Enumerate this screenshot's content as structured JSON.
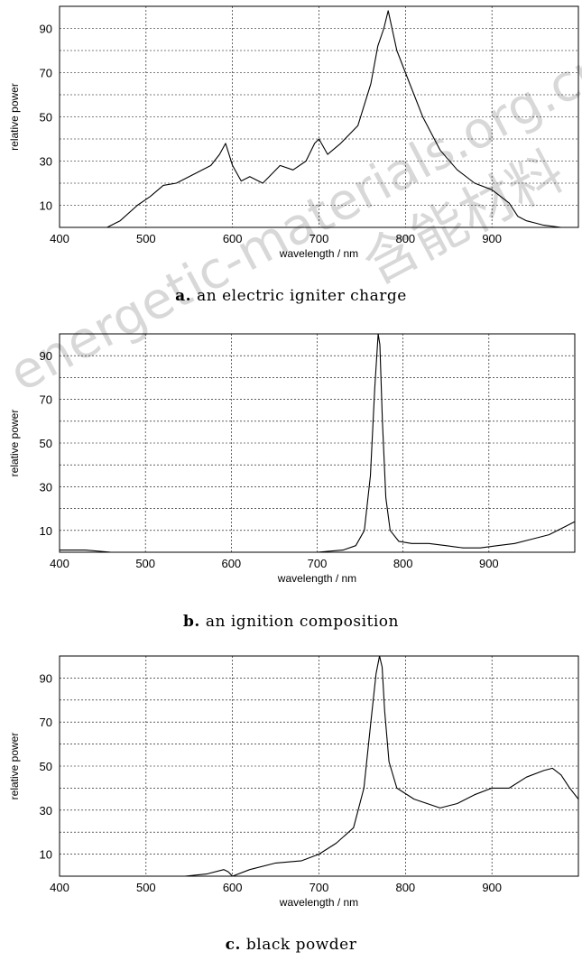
{
  "watermark": {
    "latin": "energetic-materials.org.cn",
    "cjk": "含能材料"
  },
  "chart_data": [
    {
      "type": "line",
      "caption_letter": "a.",
      "caption_text": "an electric igniter charge",
      "xlabel": "wavelength / nm",
      "ylabel": "relative power",
      "xlim": [
        400,
        1000
      ],
      "ylim": [
        0,
        100
      ],
      "xticks": [
        400,
        500,
        600,
        700,
        800,
        900
      ],
      "yticks": [
        10,
        30,
        50,
        70,
        90
      ],
      "grid": true,
      "series": [
        {
          "x": [
            455,
            470,
            490,
            505,
            520,
            535,
            555,
            575,
            585,
            592,
            600,
            610,
            620,
            635,
            645,
            655,
            670,
            685,
            695,
            700,
            710,
            725,
            745,
            760,
            768,
            775,
            780,
            790,
            800,
            820,
            840,
            860,
            880,
            900,
            920,
            930,
            940,
            950,
            960,
            980,
            1000
          ],
          "y": [
            0,
            3,
            10,
            14,
            19,
            20,
            24,
            28,
            33,
            38,
            28,
            21,
            23,
            20,
            24,
            28,
            26,
            30,
            38,
            40,
            33,
            38,
            46,
            65,
            82,
            90,
            98,
            80,
            70,
            50,
            35,
            26,
            20,
            17,
            11,
            5,
            3,
            2,
            1,
            0,
            0
          ]
        }
      ]
    },
    {
      "type": "line",
      "caption_letter": "b.",
      "caption_text": "an ignition composition",
      "xlabel": "wavelength / nm",
      "ylabel": "relative power",
      "xlim": [
        400,
        1000
      ],
      "ylim": [
        0,
        100
      ],
      "xticks": [
        400,
        500,
        600,
        700,
        800,
        900
      ],
      "yticks": [
        10,
        30,
        50,
        70,
        90
      ],
      "grid": true,
      "series": [
        {
          "x": [
            400,
            430,
            460,
            500,
            550,
            600,
            650,
            700,
            730,
            745,
            755,
            762,
            767,
            771,
            773,
            776,
            780,
            785,
            795,
            810,
            830,
            850,
            870,
            890,
            910,
            930,
            950,
            970,
            990,
            1000
          ],
          "y": [
            1,
            1,
            0,
            0,
            0,
            0,
            0,
            0,
            1,
            3,
            10,
            35,
            75,
            100,
            95,
            60,
            25,
            10,
            5,
            4,
            4,
            3,
            2,
            2,
            3,
            4,
            6,
            8,
            12,
            14
          ]
        }
      ]
    },
    {
      "type": "line",
      "caption_letter": "c.",
      "caption_text": "black powder",
      "xlabel": "wavelength / nm",
      "ylabel": "relative power",
      "xlim": [
        400,
        1000
      ],
      "ylim": [
        0,
        100
      ],
      "xticks": [
        400,
        500,
        600,
        700,
        800,
        900
      ],
      "yticks": [
        10,
        30,
        50,
        70,
        90
      ],
      "grid": true,
      "series": [
        {
          "x": [
            545,
            570,
            590,
            595,
            600,
            620,
            650,
            680,
            700,
            720,
            740,
            752,
            760,
            766,
            770,
            773,
            776,
            781,
            790,
            810,
            840,
            860,
            880,
            900,
            920,
            940,
            960,
            970,
            980,
            990,
            1000
          ],
          "y": [
            0,
            1,
            3,
            2,
            0,
            3,
            6,
            7,
            10,
            15,
            22,
            40,
            70,
            92,
            100,
            95,
            75,
            52,
            40,
            35,
            31,
            33,
            37,
            40,
            40,
            45,
            48,
            49,
            46,
            40,
            35
          ]
        }
      ]
    }
  ]
}
